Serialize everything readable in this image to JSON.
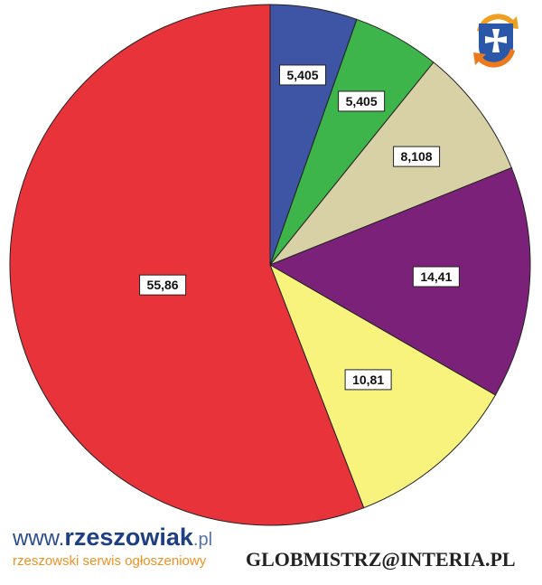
{
  "chart_data": {
    "type": "pie",
    "start": "top",
    "direction": "clockwise",
    "slices": [
      {
        "label": "5,405",
        "value": 5.405,
        "color": "#3e55a5"
      },
      {
        "label": "5,405",
        "value": 5.405,
        "color": "#3db54a"
      },
      {
        "label": "8,108",
        "value": 8.108,
        "color": "#d8d1a6"
      },
      {
        "label": "14,41",
        "value": 14.41,
        "color": "#7c2179"
      },
      {
        "label": "10,81",
        "value": 10.81,
        "color": "#f7f37c"
      },
      {
        "label": "55,86",
        "value": 55.86,
        "color": "#e9333b"
      }
    ]
  },
  "footer": "GLOBMISTRZ@INTERIA.PL",
  "watermark": {
    "www": "www.",
    "brand": "rzeszowiak",
    "tld": ".pl",
    "tagline": "rzeszowski serwis ogłoszeniowy"
  },
  "logo_icon": "cross-shield-arrows-icon"
}
